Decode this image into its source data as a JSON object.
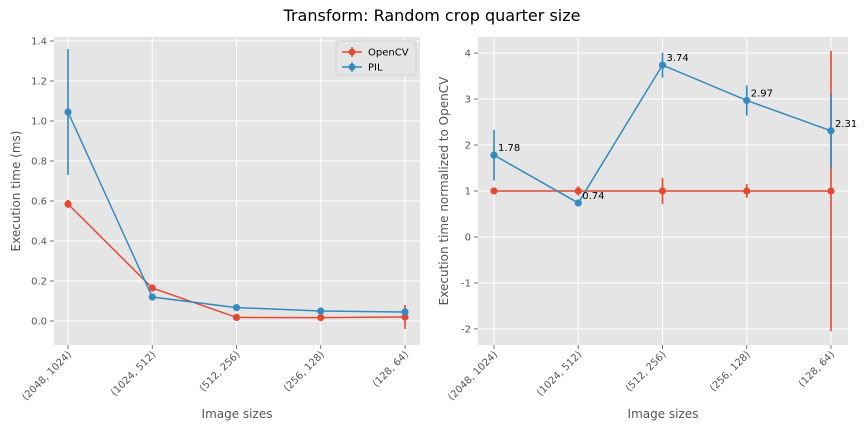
{
  "title": "Transform: Random crop quarter size",
  "colors": {
    "opencv": "#E24A33",
    "pil": "#348ABD",
    "background": "#E5E5E5",
    "grid": "#FFFFFF"
  },
  "chart_data": [
    {
      "type": "line",
      "categories": [
        "(2048, 1024)",
        "(1024, 512)",
        "(512, 256)",
        "(256, 128)",
        "(128, 64)"
      ],
      "xlabel": "Image sizes",
      "ylabel": "Execution time (ms)",
      "ylim": [
        -0.12,
        1.42
      ],
      "yticks": [
        "0.0",
        "0.2",
        "0.4",
        "0.6",
        "0.8",
        "1.0",
        "1.2",
        "1.4"
      ],
      "legend": "top-right",
      "grid": true,
      "series": [
        {
          "name": "OpenCV",
          "color": "#E24A33",
          "values": [
            0.585,
            0.165,
            0.018,
            0.017,
            0.02
          ],
          "errors": [
            0.02,
            0.012,
            0.01,
            0.01,
            0.06
          ]
        },
        {
          "name": "PIL",
          "color": "#348ABD",
          "values": [
            1.045,
            0.12,
            0.067,
            0.05,
            0.045
          ],
          "errors": [
            0.315,
            0.008,
            0.006,
            0.005,
            0.004
          ]
        }
      ]
    },
    {
      "type": "line",
      "categories": [
        "(2048, 1024)",
        "(1024, 512)",
        "(512, 256)",
        "(256, 128)",
        "(128, 64)"
      ],
      "xlabel": "Image sizes",
      "ylabel": "Execution time normalized to OpenCV",
      "ylim": [
        -2.35,
        4.35
      ],
      "yticks": [
        "-2",
        "-1",
        "0",
        "1",
        "2",
        "3",
        "4"
      ],
      "grid": true,
      "series": [
        {
          "color": "#E24A33",
          "values": [
            1.0,
            1.0,
            1.0,
            1.0,
            1.0
          ],
          "errors": [
            0.05,
            0.1,
            0.28,
            0.15,
            3.05
          ]
        },
        {
          "color": "#348ABD",
          "values": [
            1.78,
            0.74,
            3.74,
            2.97,
            2.31
          ],
          "errors": [
            0.55,
            0.05,
            0.27,
            0.33,
            0.8
          ],
          "labels": [
            "1.78",
            "0.74",
            "3.74",
            "2.97",
            "2.31"
          ]
        }
      ]
    }
  ]
}
